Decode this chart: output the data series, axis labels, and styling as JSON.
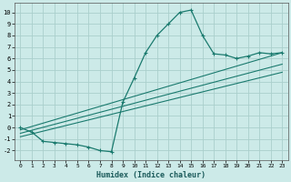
{
  "xlabel": "Humidex (Indice chaleur)",
  "bg_color": "#cceae8",
  "line_color": "#1a7a6e",
  "grid_color": "#aacfcc",
  "xlim": [
    -0.5,
    23.5
  ],
  "ylim": [
    -2.8,
    10.8
  ],
  "xticks": [
    0,
    1,
    2,
    3,
    4,
    5,
    6,
    7,
    8,
    9,
    10,
    11,
    12,
    13,
    14,
    15,
    16,
    17,
    18,
    19,
    20,
    21,
    22,
    23
  ],
  "yticks": [
    -2,
    -1,
    0,
    1,
    2,
    3,
    4,
    5,
    6,
    7,
    8,
    9,
    10
  ],
  "main_curve_x": [
    0,
    1,
    2,
    3,
    4,
    5,
    6,
    7,
    8,
    9,
    10,
    11,
    12,
    13,
    14,
    15,
    16,
    17,
    18,
    19,
    20,
    21,
    22,
    23
  ],
  "main_curve_y": [
    0,
    -0.4,
    -1.2,
    -1.3,
    -1.4,
    -1.5,
    -1.7,
    -2.0,
    -2.1,
    2.2,
    4.3,
    6.5,
    8.0,
    9.0,
    10.0,
    10.2,
    8.0,
    6.4,
    6.3,
    6.0,
    6.2,
    6.5,
    6.4,
    6.5
  ],
  "line1_x": [
    0,
    23
  ],
  "line1_y": [
    -0.2,
    6.5
  ],
  "line2_x": [
    0,
    23
  ],
  "line2_y": [
    -0.5,
    5.5
  ],
  "line3_x": [
    0,
    23
  ],
  "line3_y": [
    -0.8,
    4.8
  ]
}
